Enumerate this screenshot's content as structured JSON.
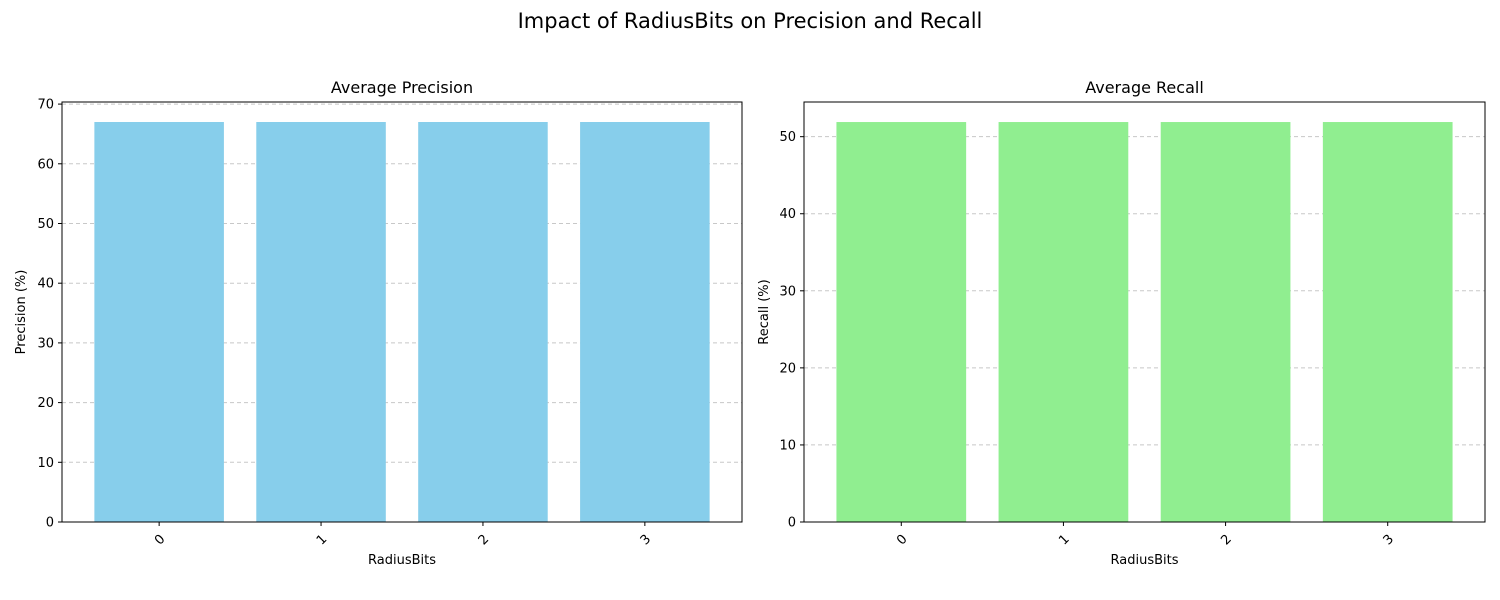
{
  "figure": {
    "title": "Impact of RadiusBits on Precision and Recall"
  },
  "chart_data": [
    {
      "type": "bar",
      "title": "Average Precision",
      "xlabel": "RadiusBits",
      "ylabel": "Precision (%)",
      "categories": [
        "0",
        "1",
        "2",
        "3"
      ],
      "values": [
        67,
        67,
        67,
        67
      ],
      "ylim": [
        0,
        70.35
      ],
      "yticks": [
        0,
        10,
        20,
        30,
        40,
        50,
        60,
        70
      ],
      "bar_color": "#87CEEB",
      "grid": "y-dashed",
      "xtick_rotation": "45deg"
    },
    {
      "type": "bar",
      "title": "Average Recall",
      "xlabel": "RadiusBits",
      "ylabel": "Recall (%)",
      "categories": [
        "0",
        "1",
        "2",
        "3"
      ],
      "values": [
        51.9,
        51.9,
        51.9,
        51.9
      ],
      "ylim": [
        0,
        54.5
      ],
      "yticks": [
        0,
        10,
        20,
        30,
        40,
        50
      ],
      "bar_color": "#90EE90",
      "grid": "y-dashed",
      "xtick_rotation": "45deg"
    }
  ]
}
